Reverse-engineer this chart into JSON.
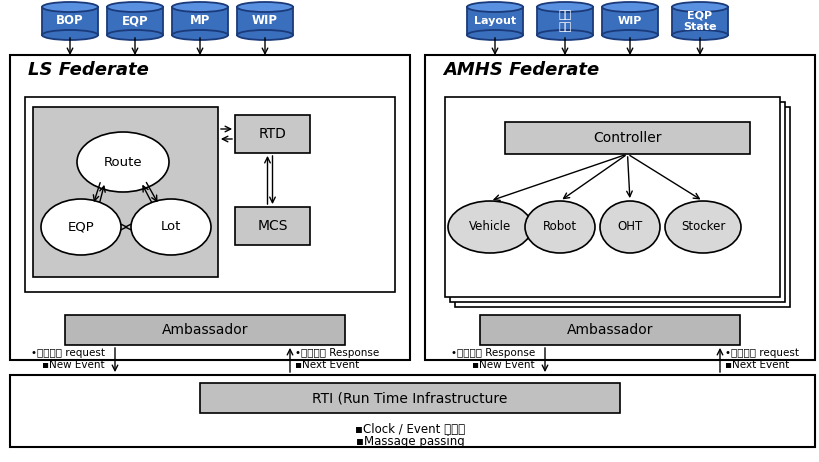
{
  "bg_color": "#ffffff",
  "blue_cyl_color": "#3a6fbd",
  "blue_cyl_edge": "#1a3a7a",
  "gray_box": "#c8c8c8",
  "amb_box": "#b0b0b0",
  "rti_box_color": "#c0c0c0",
  "ls_title": "LS Federate",
  "amhs_title": "AMHS Federate",
  "rti_label": "RTI (Run Time Infrastructure",
  "rti_sub1": "▪Clock / Event 동기화",
  "rti_sub2": "▪Massage passing",
  "ls_cylinders": [
    "BOP",
    "EQP",
    "MP",
    "WIP"
  ],
  "amhs_cylinders": [
    "Layout",
    "물류\n접점",
    "WIP",
    "EQP\nState"
  ],
  "ambassador_label": "Ambassador",
  "controller_label": "Controller",
  "rtd_label": "RTD",
  "mcs_label": "MCS",
  "route_label": "Route",
  "eqp_label": "EQP",
  "lot_label": "Lot",
  "vehicle_label": "Vehicle",
  "robot_label": "Robot",
  "oht_label": "OHT",
  "stocker_label": "Stocker",
  "ls_left_text": "▪New Event",
  "ls_left_text2": "•물류이송 request",
  "ls_right_text": "▪Next Event",
  "ls_right_text2": "•이송완료 Response",
  "amhs_left_text": "▪New Event",
  "amhs_left_text2": "•이송완료 Response",
  "amhs_right_text": "▪Next Event",
  "amhs_right_text2": "•물류이송 request"
}
